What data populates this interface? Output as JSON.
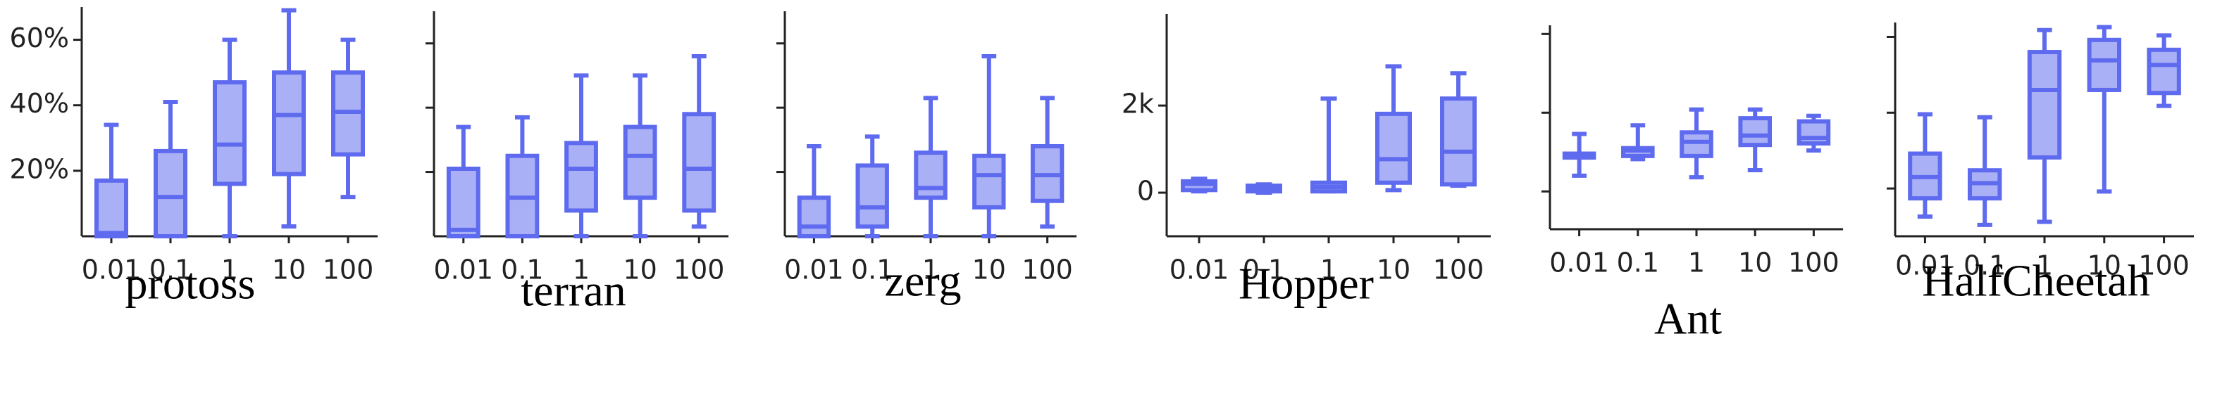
{
  "chart_data": [
    {
      "type": "box",
      "title": "protoss",
      "categories": [
        "0.01",
        "0.1",
        "1",
        "10",
        "100"
      ],
      "color": "#aab0f6",
      "edge_color": "#5f6bef",
      "ylim": [
        0,
        70
      ],
      "yticks": [
        {
          "value": 20,
          "label": "20%"
        },
        {
          "value": 40,
          "label": "40%"
        },
        {
          "value": 60,
          "label": "60%"
        }
      ],
      "tick_labels": true,
      "boxes": [
        {
          "min": 0,
          "q1": 0,
          "median": 1,
          "q3": 17,
          "max": 34
        },
        {
          "min": 0,
          "q1": 0,
          "median": 12,
          "q3": 26,
          "max": 41
        },
        {
          "min": 0,
          "q1": 16,
          "median": 28,
          "q3": 47,
          "max": 60
        },
        {
          "min": 3,
          "q1": 19,
          "median": 37,
          "q3": 50,
          "max": 69
        },
        {
          "min": 12,
          "q1": 25,
          "median": 38,
          "q3": 50,
          "max": 60
        }
      ]
    },
    {
      "type": "box",
      "title": "terran",
      "categories": [
        "0.01",
        "0.1",
        "1",
        "10",
        "100"
      ],
      "color": "#aab0f6",
      "edge_color": "#5f6bef",
      "ylim": [
        0,
        70
      ],
      "yticks": [
        20,
        40,
        60
      ],
      "tick_labels": false,
      "boxes": [
        {
          "min": 0,
          "q1": 0,
          "median": 2,
          "q3": 21,
          "max": 34
        },
        {
          "min": 0,
          "q1": 0,
          "median": 12,
          "q3": 25,
          "max": 37
        },
        {
          "min": 0,
          "q1": 8,
          "median": 21,
          "q3": 29,
          "max": 50
        },
        {
          "min": 0,
          "q1": 12,
          "median": 25,
          "q3": 34,
          "max": 50
        },
        {
          "min": 3,
          "q1": 8,
          "median": 21,
          "q3": 38,
          "max": 56
        }
      ]
    },
    {
      "type": "box",
      "title": "zerg",
      "categories": [
        "0.01",
        "0.1",
        "1",
        "10",
        "100"
      ],
      "color": "#aab0f6",
      "edge_color": "#5f6bef",
      "ylim": [
        0,
        70
      ],
      "yticks": [
        20,
        40,
        60
      ],
      "tick_labels": false,
      "boxes": [
        {
          "min": 0,
          "q1": 0,
          "median": 3,
          "q3": 12,
          "max": 28
        },
        {
          "min": 0,
          "q1": 3,
          "median": 9,
          "q3": 22,
          "max": 31
        },
        {
          "min": 0,
          "q1": 12,
          "median": 15,
          "q3": 26,
          "max": 43
        },
        {
          "min": 0,
          "q1": 9,
          "median": 19,
          "q3": 25,
          "max": 56
        },
        {
          "min": 3,
          "q1": 11,
          "median": 19,
          "q3": 28,
          "max": 43
        }
      ]
    },
    {
      "type": "box",
      "title": "Hopper",
      "categories": [
        "0.01",
        "0.1",
        "1",
        "10",
        "100"
      ],
      "color": "#aab0f6",
      "edge_color": "#5f6bef",
      "ylim": [
        -1000,
        4100
      ],
      "yticks": [
        0,
        {
          "value": 2000,
          "label": "2k"
        }
      ],
      "tick_labels": true,
      "boxes": [
        {
          "min": 30,
          "q1": 60,
          "median": 200,
          "q3": 260,
          "max": 320
        },
        {
          "min": 0,
          "q1": 30,
          "median": 100,
          "q3": 160,
          "max": 190
        },
        {
          "min": 30,
          "q1": 30,
          "median": 130,
          "q3": 230,
          "max": 2160
        },
        {
          "min": 60,
          "q1": 230,
          "median": 770,
          "q3": 1810,
          "max": 2900
        },
        {
          "min": 160,
          "q1": 190,
          "median": 940,
          "q3": 2160,
          "max": 2740
        }
      ]
    },
    {
      "type": "box",
      "title": "Ant",
      "categories": [
        "0.01",
        "0.1",
        "1",
        "10",
        "100"
      ],
      "color": "#aab0f6",
      "edge_color": "#5f6bef",
      "ylim": [
        520,
        3110
      ],
      "yticks": [
        1000,
        2000,
        3000
      ],
      "tick_labels": false,
      "boxes": [
        {
          "min": 1200,
          "q1": 1430,
          "median": 1450,
          "q3": 1480,
          "max": 1730
        },
        {
          "min": 1410,
          "q1": 1450,
          "median": 1520,
          "q3": 1550,
          "max": 1840
        },
        {
          "min": 1180,
          "q1": 1450,
          "median": 1630,
          "q3": 1750,
          "max": 2040
        },
        {
          "min": 1270,
          "q1": 1590,
          "median": 1710,
          "q3": 1930,
          "max": 2040
        },
        {
          "min": 1520,
          "q1": 1610,
          "median": 1680,
          "q3": 1890,
          "max": 1960
        }
      ]
    },
    {
      "type": "box",
      "title": "HalfCheetah",
      "categories": [
        "0.01",
        "0.1",
        "1",
        "10",
        "100"
      ],
      "color": "#aab0f6",
      "edge_color": "#5f6bef",
      "ylim": [
        370,
        3190
      ],
      "yticks": [
        1000,
        2000,
        3000
      ],
      "tick_labels": false,
      "boxes": [
        {
          "min": 630,
          "q1": 870,
          "median": 1150,
          "q3": 1460,
          "max": 1980
        },
        {
          "min": 520,
          "q1": 870,
          "median": 1070,
          "q3": 1240,
          "max": 1940
        },
        {
          "min": 560,
          "q1": 1410,
          "median": 2300,
          "q3": 2800,
          "max": 3090
        },
        {
          "min": 960,
          "q1": 2300,
          "median": 2690,
          "q3": 2960,
          "max": 3130
        },
        {
          "min": 2090,
          "q1": 2260,
          "median": 2630,
          "q3": 2830,
          "max": 3020
        }
      ]
    }
  ]
}
